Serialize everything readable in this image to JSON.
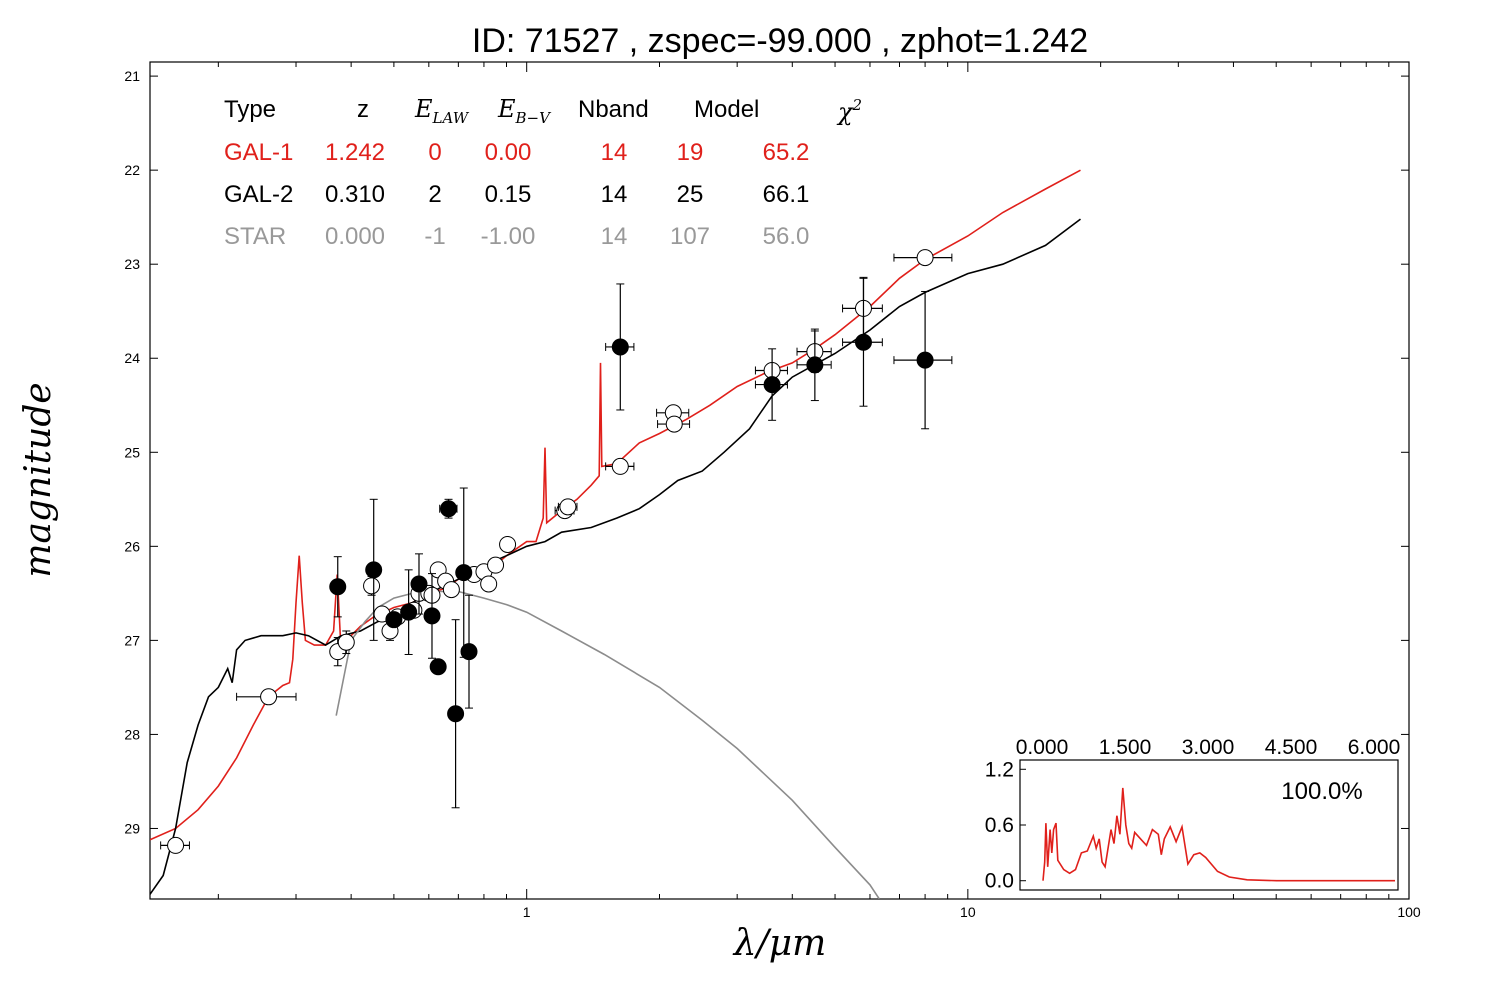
{
  "title": "ID:  71527 , zspec=-99.000 , zphot=1.242",
  "chart_data": {
    "type": "scatter",
    "title": "ID:  71527 , zspec=-99.000 , zphot=1.242",
    "xlabel": "λ/μm",
    "ylabel": "magnitude",
    "xscale": "log",
    "xlim": [
      0.14,
      100
    ],
    "ylim": [
      29.75,
      20.85
    ],
    "xticks": [
      {
        "v": 1,
        "label": "1"
      },
      {
        "v": 10,
        "label": "10"
      },
      {
        "v": 100,
        "label": "100"
      }
    ],
    "yticks": [
      21,
      22,
      23,
      24,
      25,
      26,
      27,
      28,
      29
    ],
    "colors": {
      "gal1": "#e0201b",
      "gal2": "#000000",
      "star": "#8c8c8c"
    },
    "legend": {
      "headers": [
        "Type",
        "z",
        "E_LAW",
        "E_B−V",
        "Nband",
        "Model",
        "χ²"
      ],
      "rows": [
        {
          "type": "GAL-1",
          "z": "1.242",
          "elaw": "0",
          "ebv": "0.00",
          "nband": "14",
          "model": "19",
          "chi2": "65.2",
          "color": "#e0201b"
        },
        {
          "type": "GAL-2",
          "z": "0.310",
          "elaw": "2",
          "ebv": "0.15",
          "nband": "14",
          "model": "25",
          "chi2": "66.1",
          "color": "#000000"
        },
        {
          "type": "STAR",
          "z": "0.000",
          "elaw": "-1",
          "ebv": "-1.00",
          "nband": "14",
          "model": "107",
          "chi2": "56.0",
          "color": "#999999"
        }
      ]
    },
    "observed_open": [
      {
        "x": 0.16,
        "y": 29.18,
        "xerr": 0.012
      },
      {
        "x": 0.26,
        "y": 27.6,
        "xerr": 0.04
      },
      {
        "x": 0.373,
        "y": 27.12,
        "xerr": 0.012,
        "yerr": 0.15
      },
      {
        "x": 0.39,
        "y": 27.02,
        "xerr": 0.012,
        "yerr": 0.12
      },
      {
        "x": 0.445,
        "y": 26.42,
        "xerr": 0.015,
        "yerr": 0.1
      },
      {
        "x": 0.47,
        "y": 26.72,
        "xerr": 0.012
      },
      {
        "x": 0.49,
        "y": 26.9,
        "xerr": 0.012,
        "yerr": 0.1
      },
      {
        "x": 0.51,
        "y": 26.75,
        "xerr": 0.012
      },
      {
        "x": 0.555,
        "y": 26.68,
        "xerr": 0.015
      },
      {
        "x": 0.57,
        "y": 26.5,
        "xerr": 0.015
      },
      {
        "x": 0.6,
        "y": 26.5,
        "xerr": 0.015
      },
      {
        "x": 0.61,
        "y": 26.52,
        "xerr": 0.015
      },
      {
        "x": 0.63,
        "y": 26.25,
        "xerr": 0.015
      },
      {
        "x": 0.655,
        "y": 26.37,
        "xerr": 0.015
      },
      {
        "x": 0.675,
        "y": 26.46,
        "xerr": 0.015
      },
      {
        "x": 0.76,
        "y": 26.3,
        "xerr": 0.015
      },
      {
        "x": 0.8,
        "y": 26.27,
        "xerr": 0.02
      },
      {
        "x": 0.82,
        "y": 26.4,
        "xerr": 0.02
      },
      {
        "x": 0.85,
        "y": 26.2,
        "xerr": 0.02
      },
      {
        "x": 0.905,
        "y": 25.98,
        "xerr": 0.025
      },
      {
        "x": 1.22,
        "y": 25.62,
        "xerr": 0.06
      },
      {
        "x": 1.24,
        "y": 25.58,
        "xerr": 0.06
      },
      {
        "x": 1.63,
        "y": 25.15,
        "xerr": 0.12
      },
      {
        "x": 2.15,
        "y": 24.58,
        "xerr": 0.18
      },
      {
        "x": 2.16,
        "y": 24.7,
        "xerr": 0.18
      },
      {
        "x": 3.6,
        "y": 24.13,
        "xerr": 0.3
      },
      {
        "x": 4.5,
        "y": 23.93,
        "xerr": 0.4,
        "yerr": 0.22
      },
      {
        "x": 5.8,
        "y": 23.47,
        "xerr": 0.6,
        "yerr": 0.33
      },
      {
        "x": 8.0,
        "y": 22.93,
        "xerr": 1.2
      }
    ],
    "observed_filled": [
      {
        "x": 0.373,
        "y": 26.43,
        "xerr": 0.012,
        "yerr": 0.32
      },
      {
        "x": 0.45,
        "y": 26.25,
        "xerr": 0.012,
        "yerr": 0.75
      },
      {
        "x": 0.5,
        "y": 26.78,
        "xerr": 0.012
      },
      {
        "x": 0.54,
        "y": 26.7,
        "xerr": 0.012,
        "yerr": 0.45
      },
      {
        "x": 0.57,
        "y": 26.4,
        "xerr": 0.012,
        "yerr": 0.32
      },
      {
        "x": 0.61,
        "y": 26.74,
        "xerr": 0.012,
        "yerr": 0.45
      },
      {
        "x": 0.63,
        "y": 27.28,
        "xerr": 0.012
      },
      {
        "x": 0.665,
        "y": 25.6,
        "xerr": 0.03,
        "yerr": 0.1
      },
      {
        "x": 0.69,
        "y": 27.78,
        "xerr": 0.015,
        "yerr": 1.0
      },
      {
        "x": 0.72,
        "y": 26.28,
        "xerr": 0.015,
        "yerr": 0.9
      },
      {
        "x": 0.74,
        "y": 27.12,
        "xerr": 0.015,
        "yerr": 0.6
      },
      {
        "x": 1.63,
        "y": 23.88,
        "xerr": 0.12,
        "yerr": 0.67
      },
      {
        "x": 3.6,
        "y": 24.28,
        "xerr": 0.3,
        "yerr": 0.38
      },
      {
        "x": 4.5,
        "y": 24.07,
        "xerr": 0.4,
        "yerr": 0.38
      },
      {
        "x": 5.8,
        "y": 23.83,
        "xerr": 0.6,
        "yerr": 0.68
      },
      {
        "x": 8.0,
        "y": 24.02,
        "xerr": 1.2,
        "yerr": 0.73
      }
    ],
    "series": [
      {
        "color": "#e0201b",
        "points": [
          [
            0.14,
            29.12
          ],
          [
            0.16,
            29.0
          ],
          [
            0.18,
            28.8
          ],
          [
            0.2,
            28.55
          ],
          [
            0.22,
            28.25
          ],
          [
            0.24,
            27.9
          ],
          [
            0.26,
            27.6
          ],
          [
            0.28,
            27.48
          ],
          [
            0.29,
            27.45
          ],
          [
            0.295,
            27.2
          ],
          [
            0.3,
            26.6
          ],
          [
            0.305,
            26.1
          ],
          [
            0.31,
            26.6
          ],
          [
            0.315,
            27.0
          ],
          [
            0.33,
            27.05
          ],
          [
            0.35,
            27.05
          ],
          [
            0.365,
            26.9
          ],
          [
            0.372,
            26.3
          ],
          [
            0.378,
            26.95
          ],
          [
            0.39,
            27.0
          ],
          [
            0.42,
            26.85
          ],
          [
            0.45,
            26.75
          ],
          [
            0.5,
            26.65
          ],
          [
            0.55,
            26.6
          ],
          [
            0.6,
            26.5
          ],
          [
            0.65,
            26.45
          ],
          [
            0.7,
            26.35
          ],
          [
            0.75,
            26.3
          ],
          [
            0.8,
            26.25
          ],
          [
            0.85,
            26.2
          ],
          [
            0.9,
            26.1
          ],
          [
            1.0,
            25.95
          ],
          [
            1.05,
            25.95
          ],
          [
            1.09,
            25.7
          ],
          [
            1.1,
            24.95
          ],
          [
            1.11,
            25.75
          ],
          [
            1.2,
            25.62
          ],
          [
            1.3,
            25.5
          ],
          [
            1.4,
            25.35
          ],
          [
            1.46,
            25.25
          ],
          [
            1.47,
            24.05
          ],
          [
            1.48,
            25.15
          ],
          [
            1.6,
            25.12
          ],
          [
            1.8,
            24.9
          ],
          [
            2.0,
            24.8
          ],
          [
            2.3,
            24.65
          ],
          [
            2.6,
            24.5
          ],
          [
            3.0,
            24.3
          ],
          [
            3.5,
            24.15
          ],
          [
            4.0,
            24.05
          ],
          [
            4.5,
            23.9
          ],
          [
            5.0,
            23.75
          ],
          [
            6.0,
            23.45
          ],
          [
            7.0,
            23.15
          ],
          [
            8.0,
            22.95
          ],
          [
            10.0,
            22.7
          ],
          [
            12.0,
            22.45
          ],
          [
            15.0,
            22.2
          ],
          [
            18.0,
            22.0
          ]
        ]
      },
      {
        "color": "#000000",
        "points": [
          [
            0.14,
            29.7
          ],
          [
            0.15,
            29.5
          ],
          [
            0.16,
            29.0
          ],
          [
            0.17,
            28.3
          ],
          [
            0.18,
            27.9
          ],
          [
            0.19,
            27.6
          ],
          [
            0.2,
            27.5
          ],
          [
            0.21,
            27.3
          ],
          [
            0.215,
            27.45
          ],
          [
            0.22,
            27.1
          ],
          [
            0.23,
            27.0
          ],
          [
            0.25,
            26.95
          ],
          [
            0.28,
            26.95
          ],
          [
            0.3,
            26.92
          ],
          [
            0.32,
            26.95
          ],
          [
            0.35,
            27.05
          ],
          [
            0.38,
            26.95
          ],
          [
            0.42,
            26.9
          ],
          [
            0.46,
            26.8
          ],
          [
            0.5,
            26.72
          ],
          [
            0.55,
            26.6
          ],
          [
            0.6,
            26.5
          ],
          [
            0.65,
            26.42
          ],
          [
            0.7,
            26.35
          ],
          [
            0.8,
            26.25
          ],
          [
            0.85,
            26.15
          ],
          [
            0.9,
            26.1
          ],
          [
            1.0,
            26.0
          ],
          [
            1.1,
            25.95
          ],
          [
            1.2,
            25.85
          ],
          [
            1.4,
            25.8
          ],
          [
            1.6,
            25.7
          ],
          [
            1.8,
            25.6
          ],
          [
            2.0,
            25.45
          ],
          [
            2.2,
            25.3
          ],
          [
            2.5,
            25.2
          ],
          [
            2.8,
            25.0
          ],
          [
            3.2,
            24.75
          ],
          [
            3.6,
            24.4
          ],
          [
            4.0,
            24.2
          ],
          [
            5.0,
            23.95
          ],
          [
            6.0,
            23.7
          ],
          [
            7.0,
            23.45
          ],
          [
            8.0,
            23.3
          ],
          [
            10.0,
            23.1
          ],
          [
            12.0,
            23.0
          ],
          [
            15.0,
            22.8
          ],
          [
            18.0,
            22.52
          ]
        ]
      },
      {
        "color": "#8c8c8c",
        "points": [
          [
            0.37,
            27.8
          ],
          [
            0.4,
            27.0
          ],
          [
            0.43,
            26.8
          ],
          [
            0.46,
            26.65
          ],
          [
            0.5,
            26.55
          ],
          [
            0.55,
            26.5
          ],
          [
            0.6,
            26.48
          ],
          [
            0.7,
            26.48
          ],
          [
            0.8,
            26.55
          ],
          [
            0.9,
            26.62
          ],
          [
            1.0,
            26.7
          ],
          [
            1.2,
            26.9
          ],
          [
            1.5,
            27.15
          ],
          [
            2.0,
            27.5
          ],
          [
            2.5,
            27.85
          ],
          [
            3.0,
            28.15
          ],
          [
            4.0,
            28.7
          ],
          [
            5.0,
            29.2
          ],
          [
            6.0,
            29.6
          ],
          [
            6.3,
            29.75
          ]
        ]
      }
    ],
    "inset": {
      "xticks": [
        "0.000",
        "1.500",
        "3.000",
        "4.500",
        "6.000"
      ],
      "yticks": [
        "1.2",
        "0.6",
        "0.0"
      ],
      "xlim": [
        0,
        6
      ],
      "ylim": [
        -0.1,
        1.3
      ],
      "label": "100.0%",
      "color": "#e0201b",
      "pdz": [
        [
          0.05,
          0.0
        ],
        [
          0.08,
          0.2
        ],
        [
          0.1,
          0.62
        ],
        [
          0.13,
          0.15
        ],
        [
          0.17,
          0.55
        ],
        [
          0.2,
          0.3
        ],
        [
          0.23,
          0.55
        ],
        [
          0.27,
          0.62
        ],
        [
          0.3,
          0.22
        ],
        [
          0.4,
          0.12
        ],
        [
          0.5,
          0.08
        ],
        [
          0.6,
          0.12
        ],
        [
          0.7,
          0.3
        ],
        [
          0.8,
          0.32
        ],
        [
          0.9,
          0.48
        ],
        [
          0.95,
          0.35
        ],
        [
          1.0,
          0.45
        ],
        [
          1.05,
          0.2
        ],
        [
          1.1,
          0.15
        ],
        [
          1.2,
          0.55
        ],
        [
          1.25,
          0.4
        ],
        [
          1.3,
          0.7
        ],
        [
          1.35,
          0.5
        ],
        [
          1.4,
          1.0
        ],
        [
          1.45,
          0.6
        ],
        [
          1.5,
          0.4
        ],
        [
          1.55,
          0.35
        ],
        [
          1.6,
          0.52
        ],
        [
          1.7,
          0.45
        ],
        [
          1.8,
          0.38
        ],
        [
          1.9,
          0.55
        ],
        [
          2.0,
          0.5
        ],
        [
          2.05,
          0.28
        ],
        [
          2.1,
          0.45
        ],
        [
          2.2,
          0.58
        ],
        [
          2.3,
          0.42
        ],
        [
          2.4,
          0.58
        ],
        [
          2.5,
          0.18
        ],
        [
          2.6,
          0.28
        ],
        [
          2.7,
          0.3
        ],
        [
          2.8,
          0.25
        ],
        [
          3.0,
          0.1
        ],
        [
          3.2,
          0.04
        ],
        [
          3.5,
          0.01
        ],
        [
          4.0,
          0.0
        ],
        [
          6.0,
          0.0
        ]
      ]
    }
  }
}
